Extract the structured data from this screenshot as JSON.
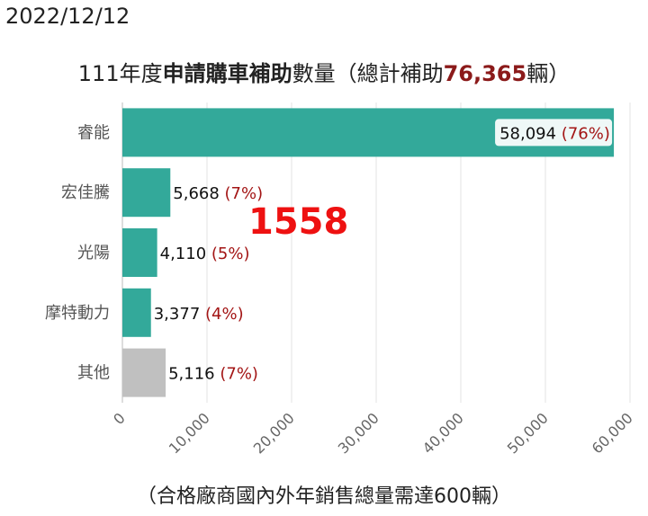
{
  "date": "2022/12/12",
  "title": {
    "prefix": "111年度",
    "bold": "申請購車補助",
    "middle": "數量（總計補助",
    "total": "76,365",
    "suffix": "輛）"
  },
  "annotation": "1558",
  "footnote": "（合格廠商國內外年銷售總量需達600輛）",
  "colors": {
    "bar": "#33a99a",
    "other": "#c0c0c0",
    "percent": "#a31515",
    "annotation": "#ee1111"
  },
  "chart_data": {
    "type": "bar",
    "orientation": "horizontal",
    "title": "111年度申請購車補助數量（總計補助76,365輛）",
    "categories": [
      "睿能",
      "宏佳騰",
      "光陽",
      "摩特動力",
      "其他"
    ],
    "values": [
      58094,
      5668,
      4110,
      3377,
      5116
    ],
    "value_labels": [
      "58,094",
      "5,668",
      "4,110",
      "3,377",
      "5,116"
    ],
    "percent_labels": [
      "(76%)",
      "(7%)",
      "(5%)",
      "(4%)",
      "(7%)"
    ],
    "xlim": [
      0,
      60000
    ],
    "xticks": [
      0,
      10000,
      20000,
      30000,
      40000,
      50000,
      60000
    ],
    "xtick_labels": [
      "0",
      "10,000",
      "20,000",
      "30,000",
      "40,000",
      "50,000",
      "60,000"
    ],
    "grid": true
  }
}
